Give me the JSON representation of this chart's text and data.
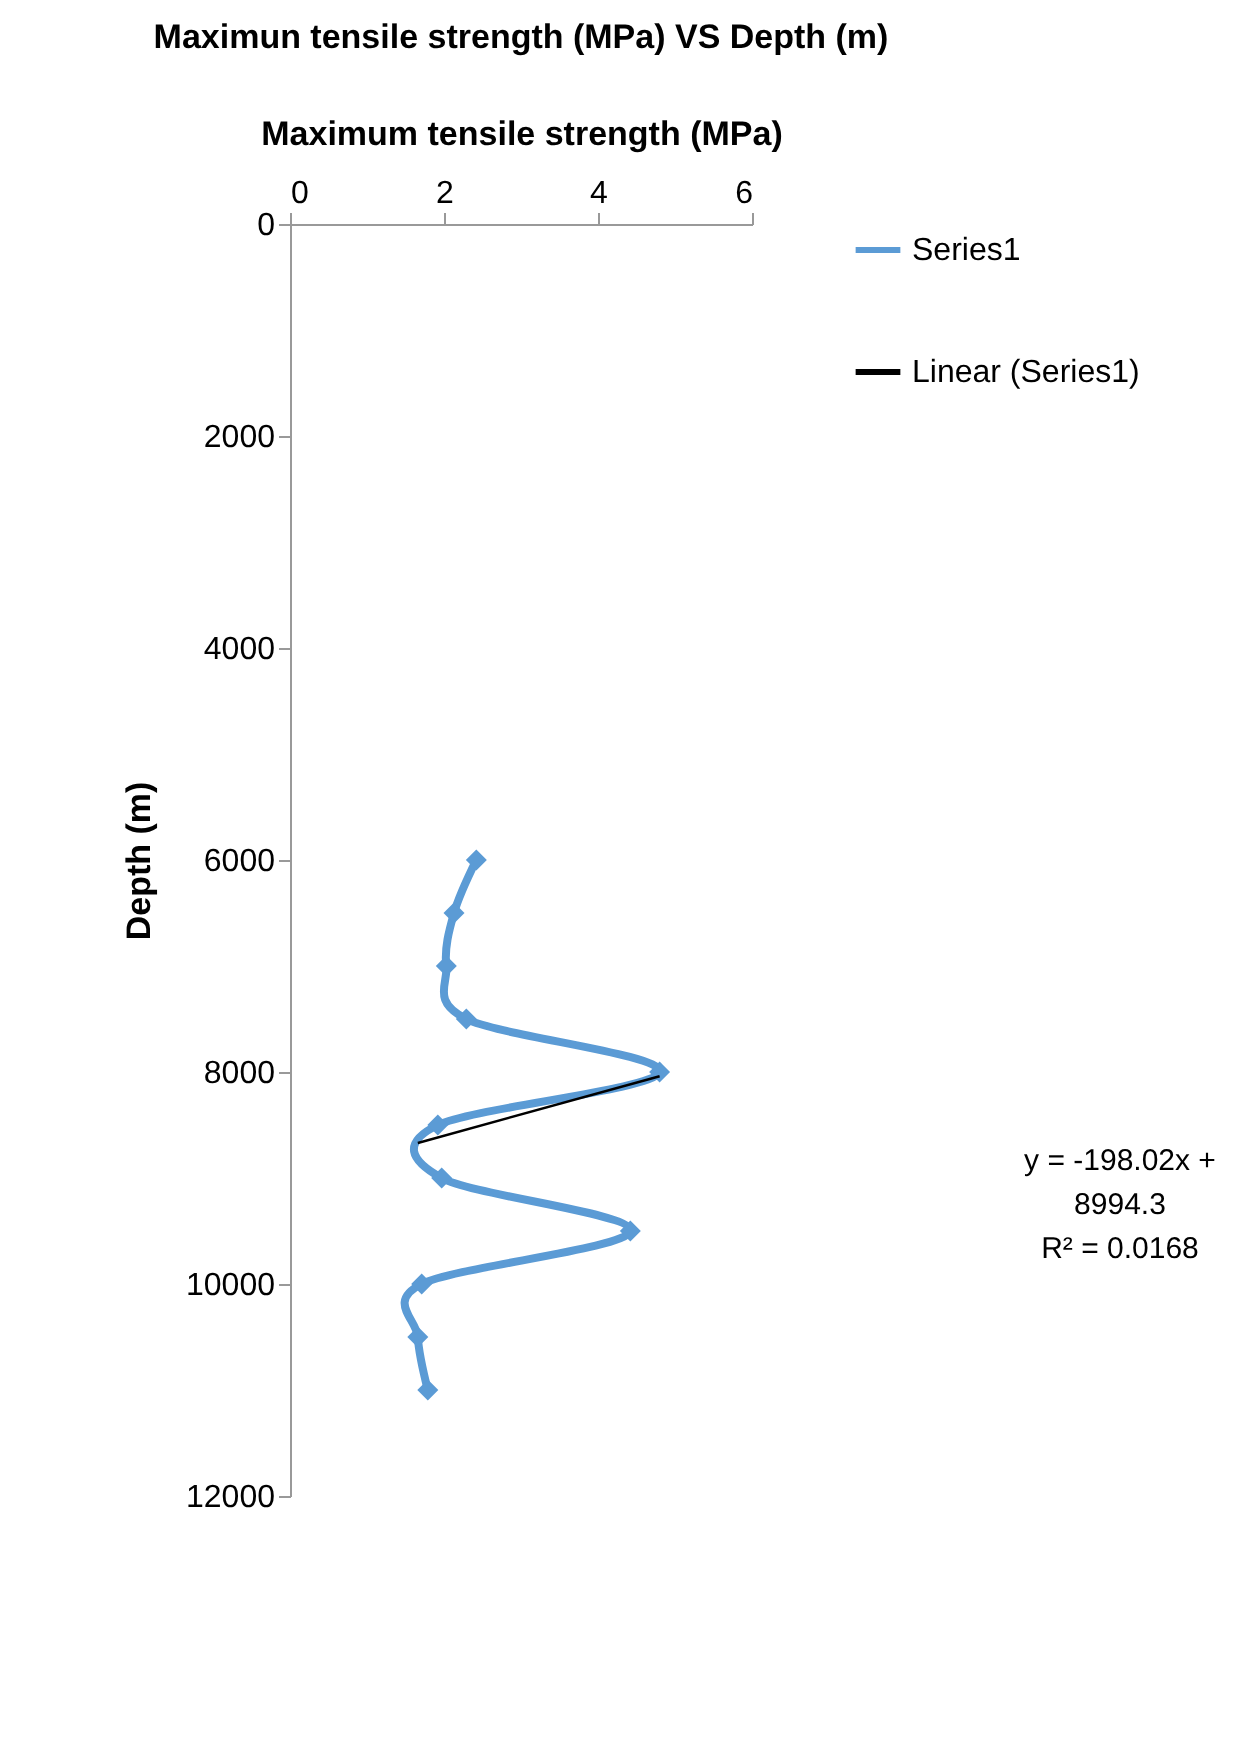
{
  "chart_data": {
    "type": "line",
    "title": "Maximun tensile strength (MPa) VS Depth (m)",
    "xlabel": "Maximum tensile strength (MPa)",
    "ylabel": "Depth (m)",
    "xlim": [
      0,
      6
    ],
    "xticks": [
      0,
      2,
      4,
      6
    ],
    "ylim": [
      12000,
      0
    ],
    "yticks": [
      0,
      2000,
      4000,
      6000,
      8000,
      10000,
      12000
    ],
    "grid": false,
    "legend": "right",
    "marker": "diamond",
    "line_style": "solid",
    "series": [
      {
        "name": "Series1",
        "color": "#5b9bd5",
        "x": [
          2.42,
          2.13,
          2.03,
          2.29,
          4.8,
          1.92,
          1.97,
          4.42,
          1.71,
          1.66,
          1.79
        ],
        "values": [
          6000,
          6500,
          7000,
          7500,
          8000,
          8500,
          9000,
          9500,
          10000,
          10500,
          11000
        ]
      },
      {
        "name": "Linear (Series1)",
        "type": "line",
        "marker": "none",
        "color": "#000000",
        "x": [
          1.66,
          4.8
        ],
        "values": [
          8670,
          8040
        ]
      }
    ],
    "annotations": [
      "y = -198.02x + 8994.3",
      "R² = 0.0168"
    ]
  }
}
